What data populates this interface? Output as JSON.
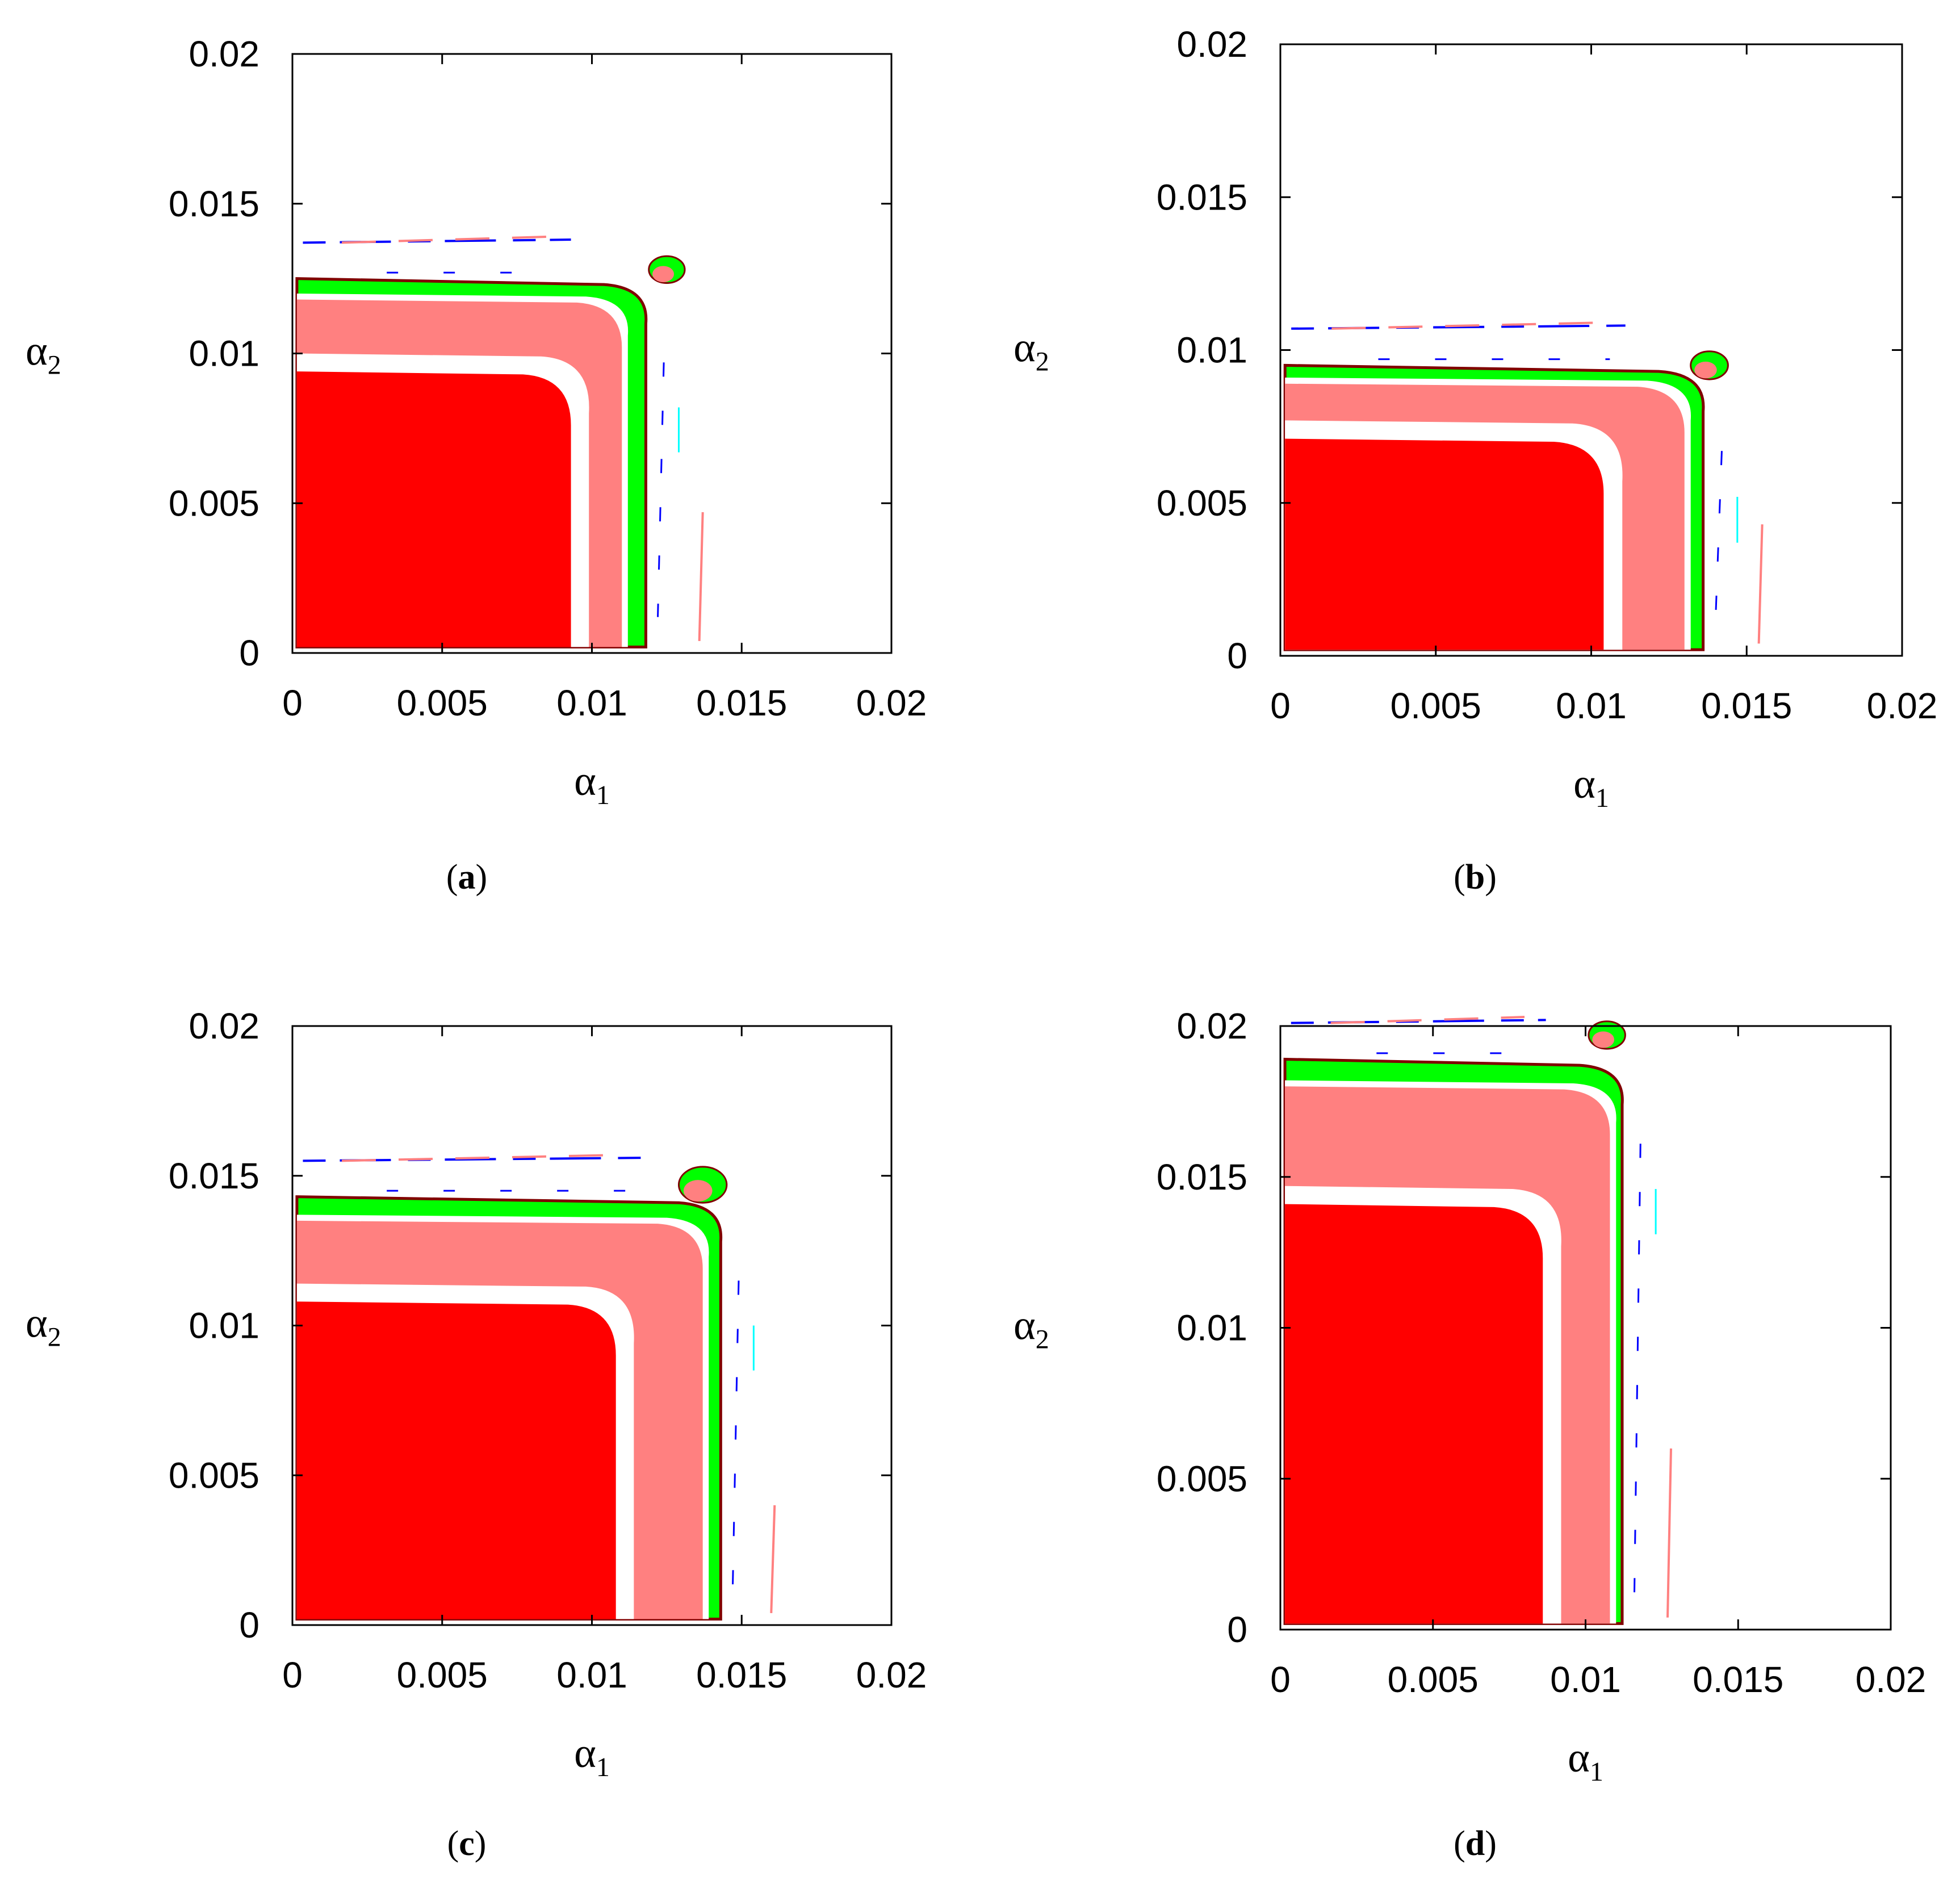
{
  "colors": {
    "red": "#ff0000",
    "pink": "#ff8080",
    "green": "#00ff00",
    "maroon": "#800000",
    "blue": "#0000ff",
    "cyan": "#00ffff",
    "frame": "#000000",
    "background": "#ffffff"
  },
  "chart_data": [
    {
      "id": "a",
      "type": "heatmap",
      "label_open": "(",
      "label_letter": "a",
      "label_close": ")",
      "xlabel": "α",
      "xlabel_sub": "1",
      "ylabel": "α",
      "ylabel_sub": "2",
      "xlim": [
        0,
        0.02
      ],
      "ylim": [
        0,
        0.02
      ],
      "xticks": [
        0,
        0.005,
        0.01,
        0.015,
        0.02
      ],
      "yticks": [
        0,
        0.005,
        0.01,
        0.015,
        0.02
      ],
      "xtick_labels": [
        "0",
        "0.005",
        "0.01",
        "0.015",
        "0.02"
      ],
      "ytick_labels": [
        "0",
        "0.005",
        "0.01",
        "0.015",
        "0.02"
      ],
      "regions": {
        "red_extent": [
          0.0093,
          0.0094
        ],
        "pink_extent": [
          0.011,
          0.0118
        ],
        "green_extent": [
          0.0118,
          0.0122
        ],
        "islands": [
          {
            "x": 0.0125,
            "y": 0.0128,
            "size": 0.0006
          },
          {
            "x": 0.0137,
            "y": 0.0047,
            "size": 0.0004
          }
        ]
      }
    },
    {
      "id": "b",
      "type": "heatmap",
      "label_open": "(",
      "label_letter": "b",
      "label_close": ")",
      "xlabel": "α",
      "xlabel_sub": "1",
      "ylabel": "α",
      "ylabel_sub": "2",
      "xlim": [
        0,
        0.02
      ],
      "ylim": [
        0,
        0.02
      ],
      "xticks": [
        0,
        0.005,
        0.01,
        0.015,
        0.02
      ],
      "yticks": [
        0,
        0.005,
        0.01,
        0.015,
        0.02
      ],
      "xtick_labels": [
        "0",
        "0.005",
        "0.01",
        "0.015",
        "0.02"
      ],
      "ytick_labels": [
        "0",
        "0.005",
        "0.01",
        "0.015",
        "0.02"
      ],
      "regions": {
        "red_extent": [
          0.0104,
          0.0071
        ],
        "pink_extent": [
          0.013,
          0.0089
        ],
        "green_extent": [
          0.0136,
          0.0092
        ],
        "islands": [
          {
            "x": 0.0138,
            "y": 0.0095,
            "size": 0.0006
          },
          {
            "x": 0.0155,
            "y": 0.0043,
            "size": 0.0004
          }
        ]
      }
    },
    {
      "id": "c",
      "type": "heatmap",
      "label_open": "(",
      "label_letter": "c",
      "label_close": ")",
      "xlabel": "α",
      "xlabel_sub": "1",
      "ylabel": "α",
      "ylabel_sub": "2",
      "xlim": [
        0,
        0.02
      ],
      "ylim": [
        0,
        0.02
      ],
      "xticks": [
        0,
        0.005,
        0.01,
        0.015,
        0.02
      ],
      "yticks": [
        0,
        0.005,
        0.01,
        0.015,
        0.02
      ],
      "xtick_labels": [
        "0",
        "0.005",
        "0.01",
        "0.015",
        "0.02"
      ],
      "ytick_labels": [
        "0",
        "0.005",
        "0.01",
        "0.015",
        "0.02"
      ],
      "regions": {
        "red_extent": [
          0.0108,
          0.0108
        ],
        "pink_extent": [
          0.0137,
          0.0135
        ],
        "green_extent": [
          0.0143,
          0.014
        ],
        "islands": [
          {
            "x": 0.0137,
            "y": 0.0147,
            "size": 0.0008
          },
          {
            "x": 0.0161,
            "y": 0.004,
            "size": 0.0004
          }
        ]
      }
    },
    {
      "id": "d",
      "type": "heatmap",
      "label_open": "(",
      "label_letter": "d",
      "label_close": ")",
      "xlabel": "α",
      "xlabel_sub": "1",
      "ylabel": "α",
      "ylabel_sub": "2",
      "xlim": [
        0,
        0.02
      ],
      "ylim": [
        0,
        0.02
      ],
      "xticks": [
        0,
        0.005,
        0.01,
        0.015,
        0.02
      ],
      "yticks": [
        0,
        0.005,
        0.01,
        0.015,
        0.02
      ],
      "xtick_labels": [
        "0",
        "0.005",
        "0.01",
        "0.015",
        "0.02"
      ],
      "ytick_labels": [
        "0",
        "0.005",
        "0.01",
        "0.015",
        "0.02"
      ],
      "regions": {
        "red_extent": [
          0.0086,
          0.0141
        ],
        "pink_extent": [
          0.0108,
          0.018
        ],
        "green_extent": [
          0.0112,
          0.0186
        ],
        "islands": [
          {
            "x": 0.0107,
            "y": 0.0197,
            "size": 0.0006
          },
          {
            "x": 0.0128,
            "y": 0.006,
            "size": 0.0004
          }
        ]
      }
    }
  ]
}
